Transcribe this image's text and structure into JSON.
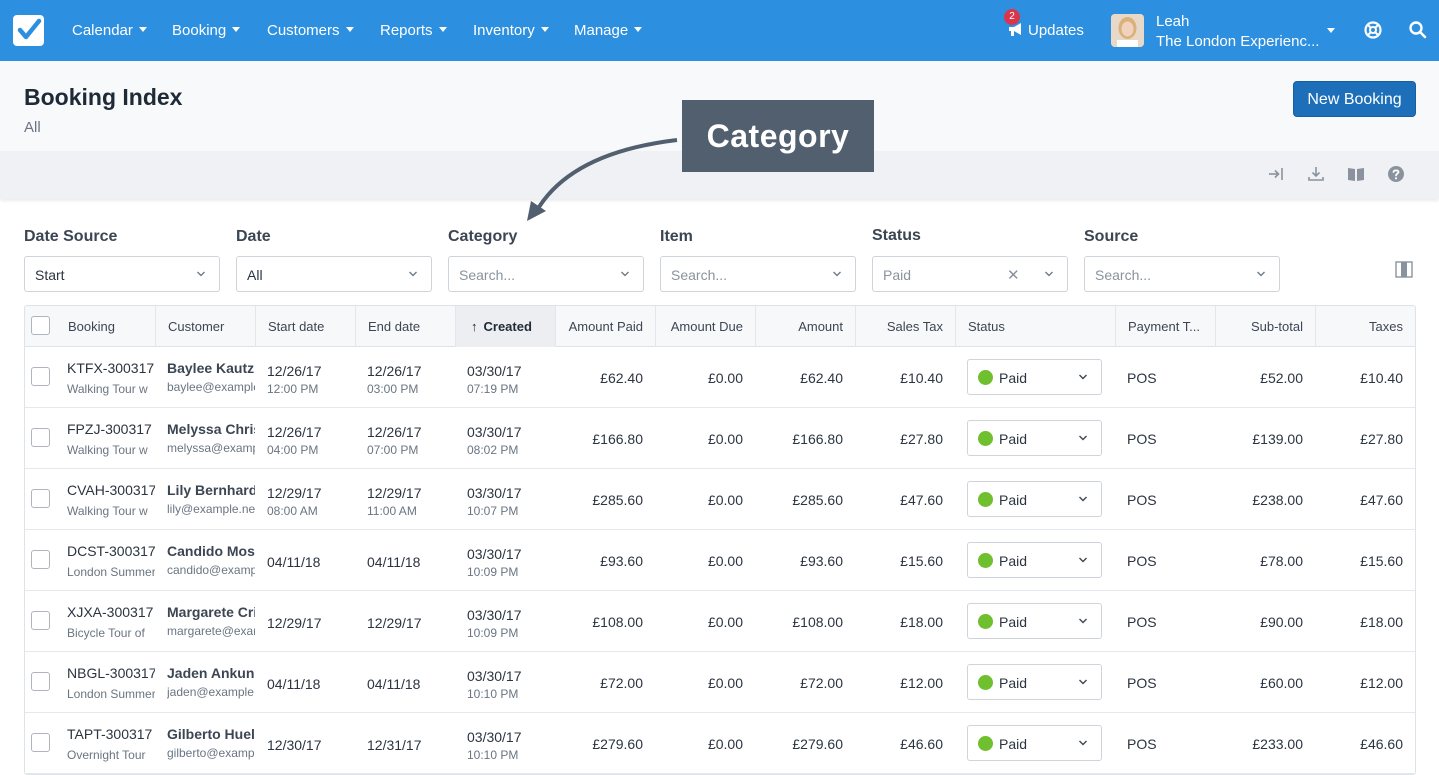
{
  "nav": {
    "items": [
      "Calendar",
      "Booking",
      "Customers",
      "Reports",
      "Inventory",
      "Manage"
    ],
    "updates_label": "Updates",
    "updates_count": "2",
    "user_name": "Leah",
    "user_org": "The London Experienc..."
  },
  "header": {
    "title": "Booking Index",
    "subtitle": "All",
    "new_button": "New Booking"
  },
  "callout": {
    "text": "Category"
  },
  "filters": {
    "date_source": {
      "label": "Date Source",
      "value": "Start"
    },
    "date": {
      "label": "Date",
      "value": "All"
    },
    "category": {
      "label": "Category",
      "placeholder": "Search..."
    },
    "item": {
      "label": "Item",
      "placeholder": "Search..."
    },
    "status": {
      "label": "Status",
      "value": "Paid"
    },
    "source": {
      "label": "Source",
      "placeholder": "Search..."
    }
  },
  "table": {
    "columns": {
      "booking": "Booking",
      "customer": "Customer",
      "start": "Start date",
      "end": "End date",
      "created": "Created",
      "amount_paid": "Amount Paid",
      "amount_due": "Amount Due",
      "amount": "Amount",
      "sales_tax": "Sales Tax",
      "status": "Status",
      "payment": "Payment T...",
      "subtotal": "Sub-total",
      "taxes": "Taxes"
    },
    "rows": [
      {
        "code": "KTFX-300317",
        "item": "Walking Tour w",
        "cust": "Baylee Kautz",
        "email": "baylee@example",
        "start_d": "12/26/17",
        "start_t": "12:00 PM",
        "end_d": "12/26/17",
        "end_t": "03:00 PM",
        "cr_d": "03/30/17",
        "cr_t": "07:19 PM",
        "paid": "£62.40",
        "due": "£0.00",
        "amount": "£62.40",
        "tax": "£10.40",
        "status": "Paid",
        "payment": "POS",
        "subtotal": "£52.00",
        "taxes": "£10.40"
      },
      {
        "code": "FPZJ-300317",
        "item": "Walking Tour w",
        "cust": "Melyssa Christ",
        "email": "melyssa@example",
        "start_d": "12/26/17",
        "start_t": "04:00 PM",
        "end_d": "12/26/17",
        "end_t": "07:00 PM",
        "cr_d": "03/30/17",
        "cr_t": "08:02 PM",
        "paid": "£166.80",
        "due": "£0.00",
        "amount": "£166.80",
        "tax": "£27.80",
        "status": "Paid",
        "payment": "POS",
        "subtotal": "£139.00",
        "taxes": "£27.80"
      },
      {
        "code": "CVAH-300317",
        "item": "Walking Tour w",
        "cust": "Lily Bernhard",
        "email": "lily@example.net",
        "start_d": "12/29/17",
        "start_t": "08:00 AM",
        "end_d": "12/29/17",
        "end_t": "11:00 AM",
        "cr_d": "03/30/17",
        "cr_t": "10:07 PM",
        "paid": "£285.60",
        "due": "£0.00",
        "amount": "£285.60",
        "tax": "£47.60",
        "status": "Paid",
        "payment": "POS",
        "subtotal": "£238.00",
        "taxes": "£47.60"
      },
      {
        "code": "DCST-300317",
        "item": "London Summer",
        "cust": "Candido Moss",
        "email": "candido@example",
        "start_d": "04/11/18",
        "start_t": "",
        "end_d": "04/11/18",
        "end_t": "",
        "cr_d": "03/30/17",
        "cr_t": "10:09 PM",
        "paid": "£93.60",
        "due": "£0.00",
        "amount": "£93.60",
        "tax": "£15.60",
        "status": "Paid",
        "payment": "POS",
        "subtotal": "£78.00",
        "taxes": "£15.60"
      },
      {
        "code": "XJXA-300317",
        "item": "Bicycle Tour of",
        "cust": "Margarete Crist",
        "email": "margarete@example",
        "start_d": "12/29/17",
        "start_t": "",
        "end_d": "12/29/17",
        "end_t": "",
        "cr_d": "03/30/17",
        "cr_t": "10:09 PM",
        "paid": "£108.00",
        "due": "£0.00",
        "amount": "£108.00",
        "tax": "£18.00",
        "status": "Paid",
        "payment": "POS",
        "subtotal": "£90.00",
        "taxes": "£18.00"
      },
      {
        "code": "NBGL-300317",
        "item": "London Summer",
        "cust": "Jaden Ankunding",
        "email": "jaden@example",
        "start_d": "04/11/18",
        "start_t": "",
        "end_d": "04/11/18",
        "end_t": "",
        "cr_d": "03/30/17",
        "cr_t": "10:10 PM",
        "paid": "£72.00",
        "due": "£0.00",
        "amount": "£72.00",
        "tax": "£12.00",
        "status": "Paid",
        "payment": "POS",
        "subtotal": "£60.00",
        "taxes": "£12.00"
      },
      {
        "code": "TAPT-300317",
        "item": "Overnight Tour",
        "cust": "Gilberto Huels",
        "email": "gilberto@example",
        "start_d": "12/30/17",
        "start_t": "",
        "end_d": "12/31/17",
        "end_t": "",
        "cr_d": "03/30/17",
        "cr_t": "10:10 PM",
        "paid": "£279.60",
        "due": "£0.00",
        "amount": "£279.60",
        "tax": "£46.60",
        "status": "Paid",
        "payment": "POS",
        "subtotal": "£233.00",
        "taxes": "£46.60"
      }
    ]
  },
  "colors": {
    "nav": "#2d8fdf",
    "primary_button": "#1d6fba",
    "paid_dot": "#6fbf2f",
    "badge": "#d9364b"
  }
}
